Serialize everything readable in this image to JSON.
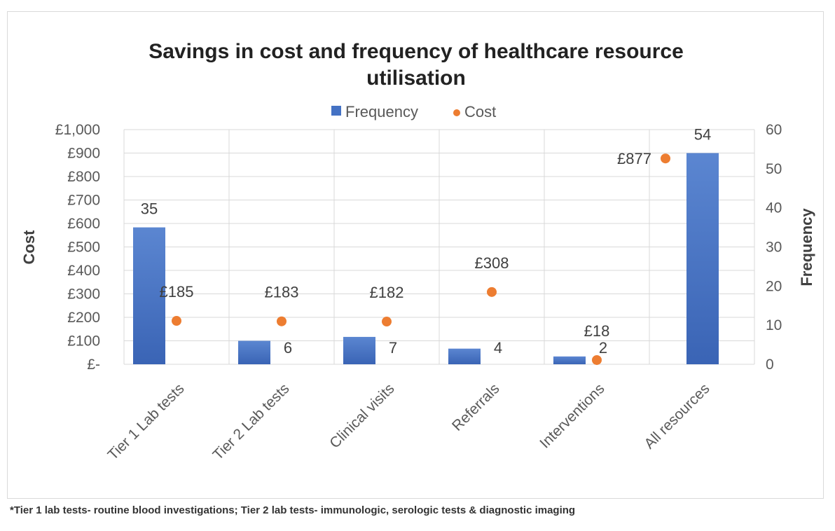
{
  "chart_data": {
    "type": "bar",
    "title_lines": [
      "Savings in cost and frequency of healthcare resource",
      "utilisation"
    ],
    "categories": [
      "Tier 1 Lab tests",
      "Tier 2 Lab tests",
      "Clinical visits",
      "Referrals",
      "Interventions",
      "All resources"
    ],
    "series": [
      {
        "name": "Frequency",
        "type": "bar",
        "axis": "right",
        "color": "#4472C4",
        "values": [
          35,
          6,
          7,
          4,
          2,
          54
        ],
        "labels": [
          "35",
          "6",
          "7",
          "4",
          "2",
          "54"
        ]
      },
      {
        "name": "Cost",
        "type": "scatter",
        "axis": "left",
        "color": "#ED7D31",
        "values": [
          185,
          183,
          182,
          308,
          18,
          877
        ],
        "labels": [
          "£185",
          "£183",
          "£182",
          "£308",
          "£18",
          "£877"
        ]
      }
    ],
    "left_axis": {
      "title": "Cost",
      "range": [
        0,
        1000
      ],
      "ticks": [
        "£-",
        "£100",
        "£200",
        "£300",
        "£400",
        "£500",
        "£600",
        "£700",
        "£800",
        "£900",
        "£1,000"
      ]
    },
    "right_axis": {
      "title": "Frequency",
      "range": [
        0,
        60
      ],
      "ticks": [
        "0",
        "10",
        "20",
        "30",
        "40",
        "50",
        "60"
      ]
    },
    "legend_position": "top",
    "grid": true
  },
  "footnote": "*Tier 1 lab tests- routine blood investigations; Tier 2 lab tests- immunologic, serologic tests & diagnostic imaging"
}
